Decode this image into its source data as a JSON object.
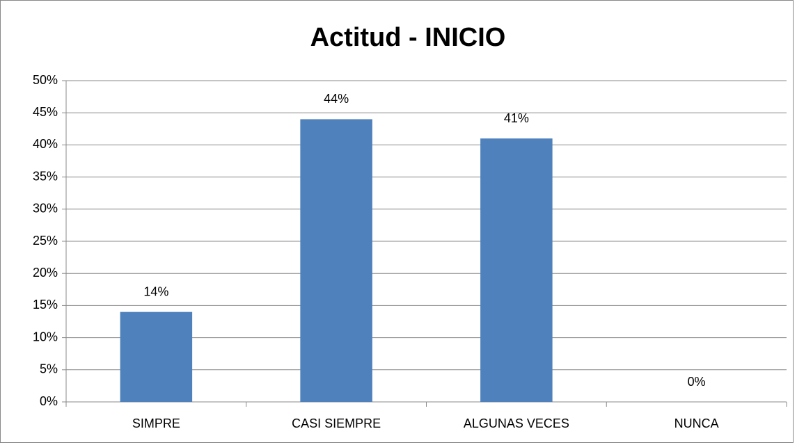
{
  "chart_data": {
    "type": "bar",
    "title": "Actitud - INICIO",
    "categories": [
      "SIMPRE",
      "CASI SIEMPRE",
      "ALGUNAS VECES",
      "NUNCA"
    ],
    "values": [
      14,
      44,
      41,
      0
    ],
    "value_labels": [
      "14%",
      "44%",
      "41%",
      "0%"
    ],
    "color": "#4f81bd",
    "ylim": [
      0,
      50
    ],
    "yticks": [
      {
        "value": 0,
        "label": "0%"
      },
      {
        "value": 5,
        "label": "5%"
      },
      {
        "value": 10,
        "label": "10%"
      },
      {
        "value": 15,
        "label": "15%"
      },
      {
        "value": 20,
        "label": "20%"
      },
      {
        "value": 25,
        "label": "25%"
      },
      {
        "value": 30,
        "label": "30%"
      },
      {
        "value": 35,
        "label": "35%"
      },
      {
        "value": 40,
        "label": "40%"
      },
      {
        "value": 45,
        "label": "45%"
      },
      {
        "value": 50,
        "label": "50%"
      }
    ],
    "grid": true
  }
}
